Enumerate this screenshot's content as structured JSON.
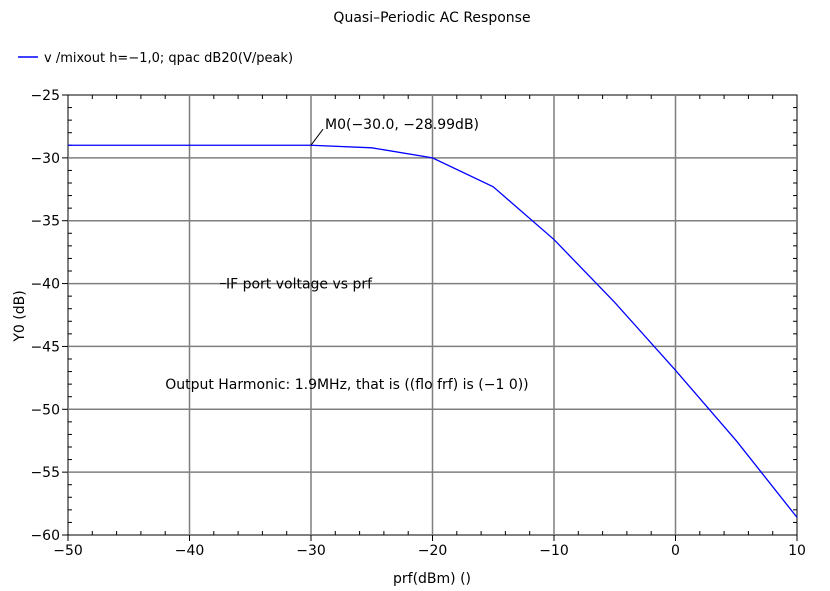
{
  "chart_data": {
    "type": "line",
    "title": "Quasi–Periodic AC Response",
    "xlabel": "prf(dBm) ()",
    "ylabel": "Y0 (dB)",
    "xlim": [
      -50,
      10
    ],
    "ylim": [
      -60,
      -25
    ],
    "x_ticks": [
      -50,
      -40,
      -30,
      -20,
      -10,
      0,
      10
    ],
    "y_ticks": [
      -25,
      -30,
      -35,
      -40,
      -45,
      -50,
      -55,
      -60
    ],
    "x_tick_labels": [
      "−50",
      "−40",
      "−30",
      "−20",
      "−10",
      "0",
      "10"
    ],
    "y_tick_labels": [
      "−25",
      "−30",
      "−35",
      "−40",
      "−45",
      "−50",
      "−55",
      "−60"
    ],
    "grid": true,
    "legend_position": "top-left",
    "series": [
      {
        "name": "v /mixout h=−1,0; qpac dB20(V/peak)",
        "color": "#0000ff",
        "x": [
          -50,
          -45,
          -40,
          -35,
          -30,
          -25,
          -20,
          -15,
          -10,
          -5,
          0,
          5,
          10
        ],
        "y": [
          -29.0,
          -29.0,
          -29.0,
          -29.0,
          -29.0,
          -29.2,
          -30.0,
          -32.3,
          -36.5,
          -41.5,
          -46.9,
          -52.5,
          -58.6
        ]
      }
    ],
    "marker": {
      "label": "M0(−30.0, −28.99dB)",
      "x": -30.0,
      "y": -28.99
    },
    "annotations": [
      {
        "text": "IF port voltage vs prf",
        "x": -37,
        "y": -40
      },
      {
        "text": "Output Harmonic: 1.9MHz, that is ((flo  frf) is (−1  0))",
        "x": -42,
        "y": -48
      }
    ]
  }
}
